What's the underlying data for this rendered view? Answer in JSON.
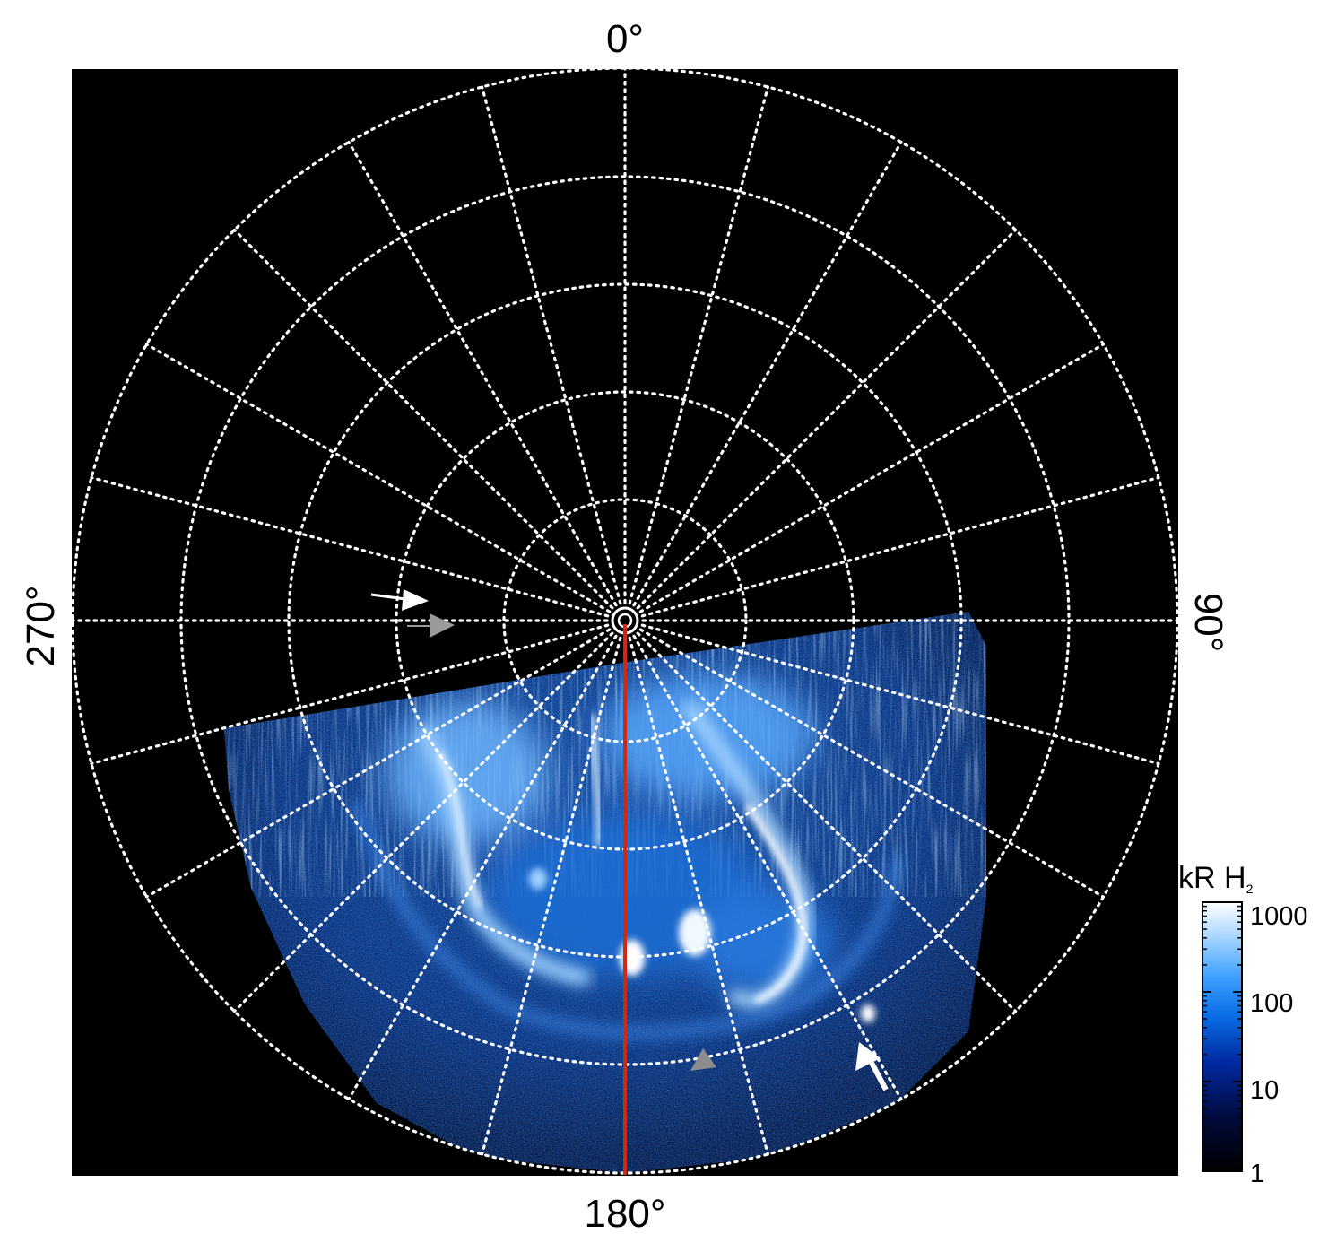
{
  "labels": {
    "top": "0°",
    "bottom": "180°",
    "left": "270°",
    "right": "90°"
  },
  "colorbar": {
    "unit_main": "kR H",
    "unit_sub": "2",
    "ticks": [
      "1000",
      "100",
      "10",
      "1"
    ],
    "colors": [
      "#000000",
      "#000a3c",
      "#0028a0",
      "#0a6ee6",
      "#3ca0ff",
      "#a0d2ff",
      "#ffffff"
    ]
  },
  "overlay": {
    "meridian_color": "#cc2a12",
    "grid_color": "#ffffff"
  }
}
